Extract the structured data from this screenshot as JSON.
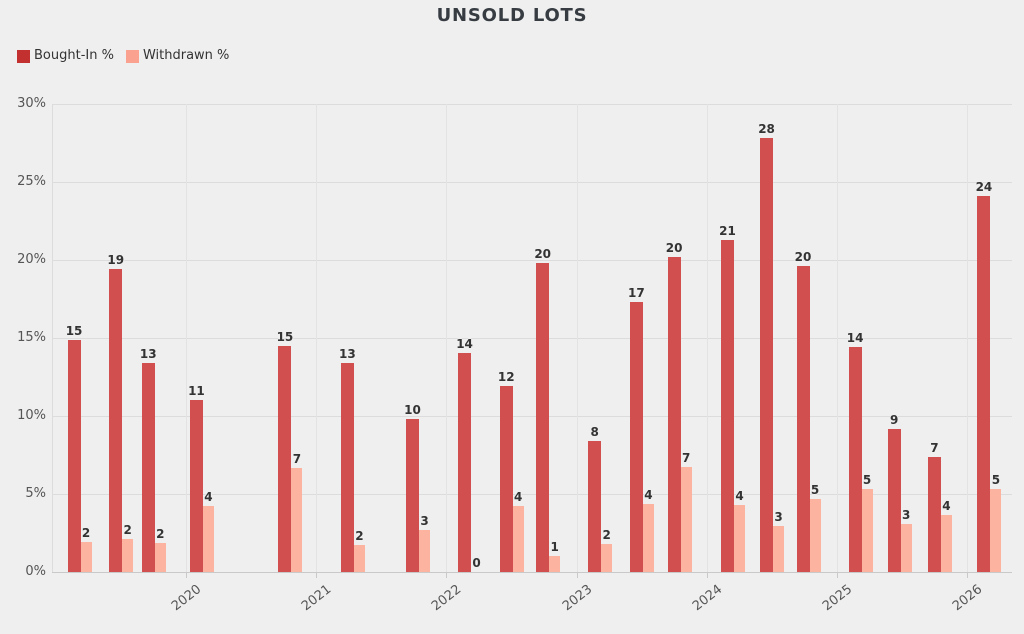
{
  "title": "UNSOLD LOTS",
  "theme": {
    "bg": "#efefef",
    "title": "#363c42",
    "text": "#333333",
    "muted": "#555555",
    "hgrid": "#dcdcdc",
    "vgrid": "#e3e3e3",
    "axis": "#c9c9c9"
  },
  "legend": {
    "position": "top-left",
    "swatch_colors": [
      "#c23030",
      "#faa28f"
    ]
  },
  "chart_data": {
    "type": "bar",
    "title": "UNSOLD LOTS",
    "legend_position": "top-left",
    "grid": {
      "horizontal": true,
      "vertical": true
    },
    "x_axis": {
      "kind": "time-years",
      "tick_labels": [
        "2020",
        "2021",
        "2022",
        "2023",
        "2024",
        "2025",
        "2026"
      ],
      "tick_values": [
        2020,
        2021,
        2022,
        2023,
        2024,
        2025,
        2026
      ]
    },
    "y_axis": {
      "unit": "%",
      "min": 0,
      "max": 30,
      "step": 5,
      "tick_labels": [
        "0%",
        "5%",
        "10%",
        "15%",
        "20%",
        "25%",
        "30%"
      ]
    },
    "series": [
      {
        "name": "Bought-In %",
        "color": "#d14f4f",
        "values": [
          15,
          19,
          13,
          11,
          15,
          13,
          10,
          14,
          12,
          20,
          8,
          17,
          20,
          21,
          28,
          20,
          14,
          9,
          7,
          24
        ]
      },
      {
        "name": "Withdrawn %",
        "color": "#fcb4a0",
        "values": [
          2,
          2,
          2,
          4,
          7,
          2,
          3,
          0,
          4,
          1,
          2,
          4,
          7,
          4,
          3,
          5,
          5,
          3,
          4,
          5
        ]
      }
    ],
    "x_values_decimal_years": [
      2019.19,
      2019.51,
      2019.76,
      2020.13,
      2020.81,
      2021.29,
      2021.79,
      2022.19,
      2022.51,
      2022.79,
      2023.19,
      2023.51,
      2023.8,
      2024.21,
      2024.51,
      2024.79,
      2025.19,
      2025.49,
      2025.8,
      2026.18
    ],
    "render_heights_pct": {
      "bought_in": [
        14.9,
        19.4,
        13.4,
        11.0,
        14.5,
        13.4,
        9.8,
        14.05,
        11.9,
        19.8,
        8.4,
        17.3,
        20.2,
        21.3,
        27.85,
        19.6,
        14.4,
        9.15,
        7.35,
        24.1
      ],
      "withdrawn": [
        1.9,
        2.1,
        1.85,
        4.2,
        6.65,
        1.7,
        2.7,
        0,
        4.2,
        1.05,
        1.8,
        4.35,
        6.75,
        4.3,
        2.95,
        4.65,
        5.3,
        3.05,
        3.65,
        5.35
      ]
    }
  }
}
